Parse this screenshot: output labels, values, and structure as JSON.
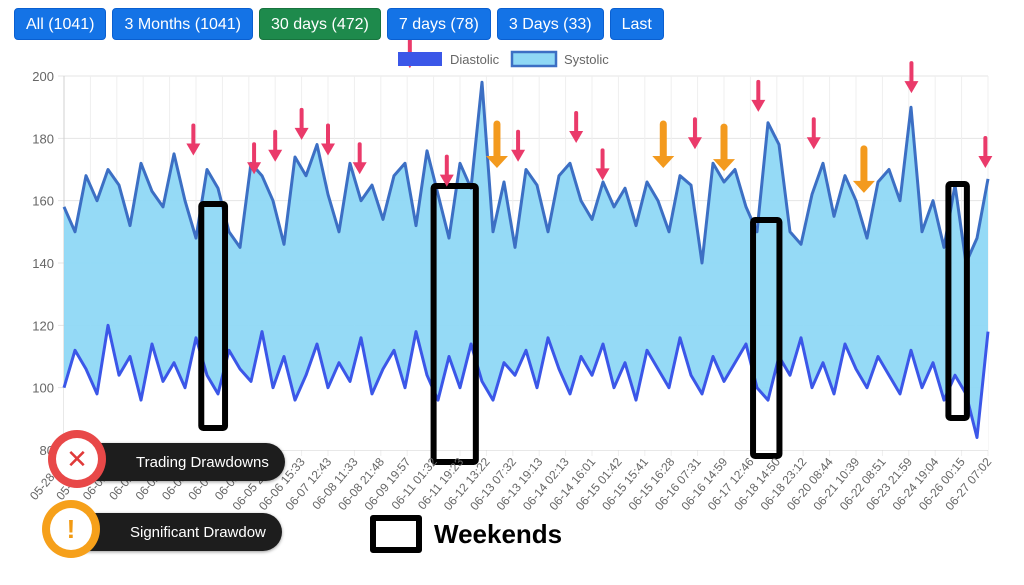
{
  "range_buttons": [
    {
      "label": "All (1041)",
      "active": false
    },
    {
      "label": "3 Months (1041)",
      "active": false
    },
    {
      "label": "30 days (472)",
      "active": true
    },
    {
      "label": "7 days (78)",
      "active": false
    },
    {
      "label": "3 Days (33)",
      "active": false
    },
    {
      "label": "Last",
      "active": false
    }
  ],
  "annotations": {
    "trading_drawdowns_label": "Trading Drawdowns",
    "significant_drawdown_label": "Significant Drawdow",
    "weekends_label": "Weekends"
  },
  "chart_data": {
    "type": "area",
    "legend_position": "top-center",
    "grid": true,
    "ylim": [
      80,
      200
    ],
    "yticks": [
      80,
      100,
      120,
      140,
      160,
      180,
      200
    ],
    "series": [
      {
        "name": "Diastolic",
        "color": "#3b57e8",
        "fill": "#3b57e8"
      },
      {
        "name": "Systolic",
        "color": "#3c6fc4",
        "fill": "#8fd8f5"
      }
    ],
    "x": [
      "05-28 23:",
      "05-31 23:",
      "06-01 13:",
      "06-02 05:",
      "06-02 23:",
      "06-03 13:",
      "06-04 03:",
      "06-05 02:",
      "06-05 20:09",
      "06-06 15:33",
      "06-07 12:43",
      "06-08 11:33",
      "06-08 21:48",
      "06-09 19:57",
      "06-11 01:32",
      "06-11 19:23",
      "06-12 13:22",
      "06-13 07:32",
      "06-13 19:13",
      "06-14 02:13",
      "06-14 16:01",
      "06-15 01:42",
      "06-15 15:41",
      "06-15 16:28",
      "06-16 07:31",
      "06-16 14:59",
      "06-17 12:46",
      "06-18 14:50",
      "06-18 23:12",
      "06-20 08:44",
      "06-21 10:39",
      "06-22 08:51",
      "06-23 21:59",
      "06-24 19:04",
      "06-26 00:15",
      "06-27 07:02"
    ],
    "systolic": [
      158,
      150,
      168,
      160,
      170,
      165,
      152,
      172,
      163,
      158,
      175,
      160,
      148,
      170,
      164,
      150,
      145,
      172,
      168,
      160,
      146,
      174,
      168,
      178,
      162,
      150,
      172,
      160,
      165,
      154,
      168,
      172,
      152,
      176,
      162,
      148,
      172,
      164,
      198,
      150,
      166,
      145,
      170,
      165,
      150,
      168,
      172,
      160,
      154,
      166,
      158,
      164,
      152,
      166,
      160,
      150,
      168,
      165,
      140,
      172,
      166,
      170,
      158,
      150,
      185,
      178,
      150,
      146,
      162,
      172,
      155,
      168,
      160,
      148,
      166,
      170,
      160,
      190,
      150,
      160,
      145,
      165,
      140,
      148,
      167
    ],
    "diastolic": [
      100,
      112,
      106,
      98,
      120,
      104,
      110,
      96,
      114,
      102,
      108,
      100,
      116,
      104,
      98,
      112,
      106,
      102,
      118,
      100,
      110,
      96,
      104,
      114,
      100,
      108,
      102,
      116,
      98,
      106,
      112,
      100,
      118,
      104,
      96,
      110,
      100,
      114,
      102,
      96,
      108,
      104,
      112,
      100,
      116,
      106,
      98,
      110,
      104,
      114,
      100,
      108,
      96,
      112,
      106,
      100,
      116,
      104,
      98,
      110,
      102,
      108,
      114,
      100,
      96,
      110,
      104,
      116,
      100,
      108,
      98,
      114,
      106,
      100,
      110,
      104,
      98,
      112,
      100,
      108,
      96,
      104,
      98,
      84,
      118
    ],
    "weekends": [
      [
        5.2,
        6.1
      ],
      [
        14.0,
        15.6
      ],
      [
        26.1,
        27.1
      ],
      [
        33.5,
        34.2
      ]
    ],
    "drawdown_markers": [
      {
        "x": 4.9,
        "y": 170,
        "kind": "trading"
      },
      {
        "x": 7.2,
        "y": 164,
        "kind": "trading"
      },
      {
        "x": 8.0,
        "y": 168,
        "kind": "trading"
      },
      {
        "x": 9.0,
        "y": 175,
        "kind": "trading"
      },
      {
        "x": 10.0,
        "y": 170,
        "kind": "trading"
      },
      {
        "x": 11.2,
        "y": 164,
        "kind": "trading"
      },
      {
        "x": 13.1,
        "y": 198,
        "kind": "trading"
      },
      {
        "x": 14.5,
        "y": 160,
        "kind": "trading"
      },
      {
        "x": 16.4,
        "y": 166,
        "kind": "significant"
      },
      {
        "x": 17.2,
        "y": 168,
        "kind": "trading"
      },
      {
        "x": 19.4,
        "y": 174,
        "kind": "trading"
      },
      {
        "x": 20.4,
        "y": 162,
        "kind": "trading"
      },
      {
        "x": 22.7,
        "y": 166,
        "kind": "significant"
      },
      {
        "x": 23.9,
        "y": 172,
        "kind": "trading"
      },
      {
        "x": 25.0,
        "y": 165,
        "kind": "significant"
      },
      {
        "x": 26.3,
        "y": 184,
        "kind": "trading"
      },
      {
        "x": 28.4,
        "y": 172,
        "kind": "trading"
      },
      {
        "x": 30.3,
        "y": 158,
        "kind": "significant"
      },
      {
        "x": 32.1,
        "y": 190,
        "kind": "trading"
      },
      {
        "x": 34.9,
        "y": 166,
        "kind": "trading"
      }
    ]
  }
}
